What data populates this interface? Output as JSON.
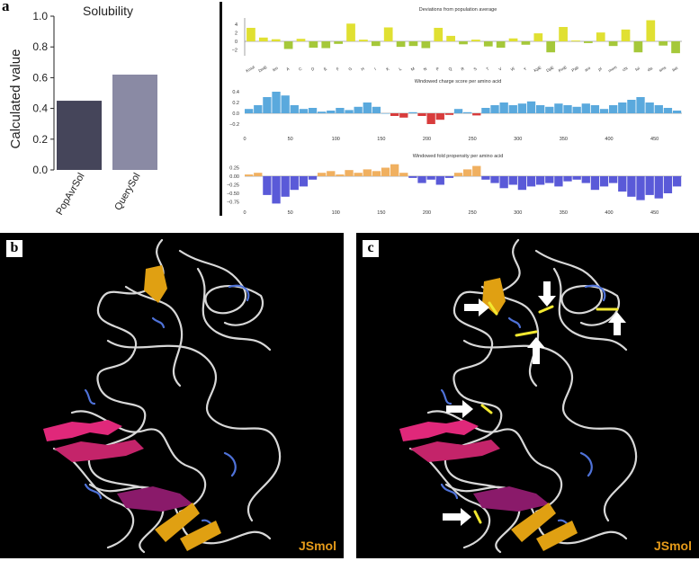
{
  "panel_a": {
    "letter": "a",
    "chart": {
      "type": "bar",
      "title": "Solubility",
      "ylabel": "Calculated value",
      "categories": [
        "PopAvrSol",
        "QuerySol"
      ],
      "values": [
        0.45,
        0.62
      ],
      "ylim": [
        0,
        1.0
      ],
      "yticks": [
        "0.0",
        "0.2",
        "0.4",
        "0.6",
        "0.8",
        "1.0"
      ],
      "colors": [
        "#45455a",
        "#8a8aa4"
      ]
    }
  },
  "panel_right": {
    "deviations": {
      "type": "bar",
      "title": "Deviations from population average",
      "yticks": [
        "4",
        "2",
        "0",
        "−2"
      ],
      "categories": [
        "Kmol",
        "DmE",
        "len",
        "A",
        "C",
        "D",
        "E",
        "F",
        "G",
        "H",
        "I",
        "K",
        "L",
        "M",
        "N",
        "P",
        "Q",
        "R",
        "S",
        "T",
        "V",
        "W",
        "Y",
        "KpE",
        "DpE",
        "PmE",
        "Pab",
        "aro",
        "pI",
        "mom",
        "chi",
        "fol",
        "dis",
        "sms",
        "bet"
      ],
      "values": [
        3.2,
        0.9,
        0.5,
        -1.8,
        0.6,
        -1.5,
        -1.6,
        -0.6,
        4.2,
        0.4,
        -1.1,
        3.3,
        -1.3,
        -1.1,
        -1.6,
        3.2,
        1.3,
        -0.7,
        0.4,
        -1.2,
        -1.5,
        0.7,
        -0.8,
        1.9,
        -2.6,
        3.4,
        0.2,
        -0.4,
        2.1,
        -1.1,
        2.8,
        -2.6,
        5.0,
        -1.0,
        -2.8
      ],
      "colors": [
        "#e0e032",
        "#e0e032",
        "#e0e032",
        "#a5c83a",
        "#e0e032",
        "#a5c83a",
        "#a5c83a",
        "#a5c83a",
        "#e0e032",
        "#e0e032",
        "#a5c83a",
        "#e0e032",
        "#a5c83a",
        "#a5c83a",
        "#a5c83a",
        "#e0e032",
        "#e0e032",
        "#a5c83a",
        "#e0e032",
        "#a5c83a",
        "#a5c83a",
        "#e0e032",
        "#a5c83a",
        "#e0e032",
        "#a5c83a",
        "#e0e032",
        "#e0e032",
        "#a5c83a",
        "#e0e032",
        "#a5c83a",
        "#e0e032",
        "#a5c83a",
        "#e0e032",
        "#a5c83a",
        "#a5c83a"
      ]
    },
    "charge": {
      "type": "area",
      "title": "Windowed charge score per amino acid",
      "yticks": [
        "0.4",
        "0.2",
        "0.0",
        "−0.2"
      ],
      "xticks": [
        "0",
        "50",
        "100",
        "150",
        "200",
        "250",
        "300",
        "350",
        "400",
        "450"
      ],
      "x": [
        0,
        10,
        20,
        30,
        40,
        50,
        60,
        70,
        80,
        90,
        100,
        110,
        120,
        130,
        140,
        150,
        160,
        170,
        180,
        190,
        200,
        210,
        220,
        230,
        240,
        250,
        260,
        270,
        280,
        290,
        300,
        310,
        320,
        330,
        340,
        350,
        360,
        370,
        380,
        390,
        400,
        410,
        420,
        430,
        440,
        450,
        460,
        470
      ],
      "values": [
        0.08,
        0.15,
        0.3,
        0.4,
        0.33,
        0.15,
        0.08,
        0.1,
        0.03,
        0.05,
        0.1,
        0.06,
        0.12,
        0.2,
        0.12,
        0.0,
        -0.05,
        -0.08,
        0.02,
        -0.05,
        -0.2,
        -0.12,
        -0.03,
        0.08,
        0.02,
        -0.04,
        0.1,
        0.15,
        0.2,
        0.15,
        0.18,
        0.22,
        0.15,
        0.12,
        0.18,
        0.15,
        0.12,
        0.18,
        0.15,
        0.08,
        0.15,
        0.2,
        0.25,
        0.3,
        0.2,
        0.15,
        0.1,
        0.05
      ],
      "pos_color": "#5aa9dd",
      "neg_color": "#d83c3c"
    },
    "fold": {
      "type": "area",
      "title": "Windowed fold propensity per amino acid",
      "yticks": [
        "0.25",
        "0.00",
        "−0.25",
        "−0.50",
        "−0.75"
      ],
      "xticks": [
        "0",
        "50",
        "100",
        "150",
        "200",
        "250",
        "300",
        "350",
        "400",
        "450"
      ],
      "x": [
        0,
        10,
        20,
        30,
        40,
        50,
        60,
        70,
        80,
        90,
        100,
        110,
        120,
        130,
        140,
        150,
        160,
        170,
        180,
        190,
        200,
        210,
        220,
        230,
        240,
        250,
        260,
        270,
        280,
        290,
        300,
        310,
        320,
        330,
        340,
        350,
        360,
        370,
        380,
        390,
        400,
        410,
        420,
        430,
        440,
        450,
        460,
        470
      ],
      "values": [
        0.05,
        0.1,
        -0.55,
        -0.8,
        -0.6,
        -0.4,
        -0.3,
        -0.1,
        0.1,
        0.15,
        0.05,
        0.18,
        0.1,
        0.2,
        0.15,
        0.25,
        0.35,
        0.1,
        -0.05,
        -0.2,
        -0.1,
        -0.25,
        -0.05,
        0.1,
        0.2,
        0.3,
        -0.1,
        -0.2,
        -0.35,
        -0.25,
        -0.4,
        -0.3,
        -0.25,
        -0.2,
        -0.3,
        -0.15,
        -0.1,
        -0.2,
        -0.4,
        -0.3,
        -0.2,
        -0.45,
        -0.6,
        -0.7,
        -0.55,
        -0.65,
        -0.5,
        -0.3
      ],
      "pos_color": "#f0b060",
      "neg_color": "#5a5ad8"
    }
  },
  "panel_b": {
    "letter": "b",
    "watermark": "JSmol"
  },
  "panel_c": {
    "letter": "c",
    "watermark": "JSmol"
  }
}
